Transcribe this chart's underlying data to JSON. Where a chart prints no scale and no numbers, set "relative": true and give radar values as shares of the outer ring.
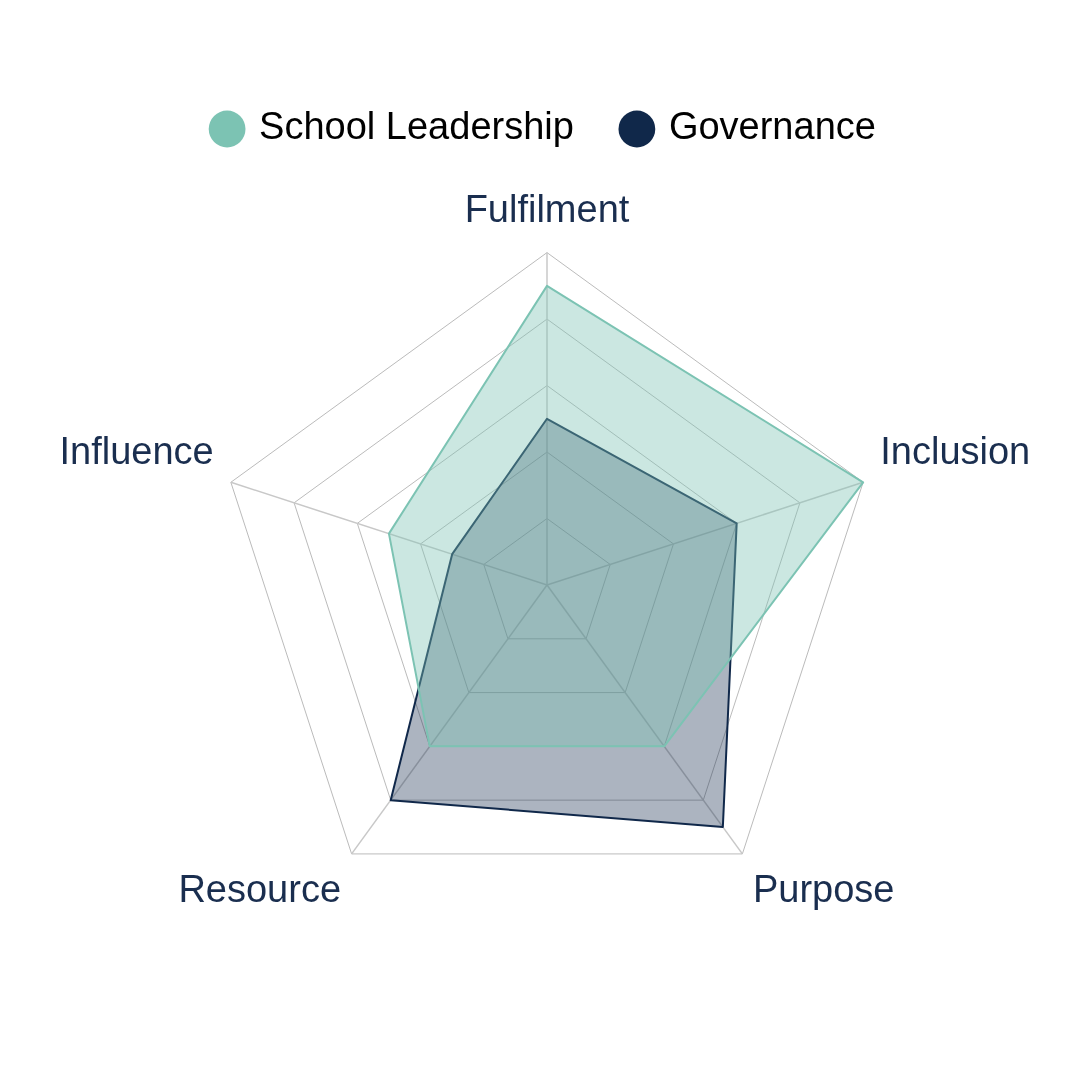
{
  "chart_data": {
    "type": "radar",
    "relative": true,
    "grid": true,
    "legend": "top",
    "categories": [
      "Fulfilment",
      "Inclusion",
      "Purpose",
      "Resource",
      "Influence"
    ],
    "series": [
      {
        "name": "School Leadership",
        "color": "#7cc3b3",
        "values": [
          0.9,
          1.0,
          0.6,
          0.6,
          0.5
        ]
      },
      {
        "name": "Governance",
        "color": "#10284a",
        "values": [
          0.5,
          0.6,
          0.9,
          0.8,
          0.3
        ]
      }
    ]
  }
}
